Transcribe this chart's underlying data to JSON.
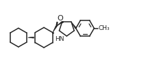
{
  "bg_color": "#ffffff",
  "line_color": "#222222",
  "line_width": 1.1,
  "figsize": [
    2.3,
    0.97
  ],
  "dpi": 100,
  "xlim": [
    0.0,
    2.3
  ],
  "ylim": [
    0.0,
    0.97
  ]
}
